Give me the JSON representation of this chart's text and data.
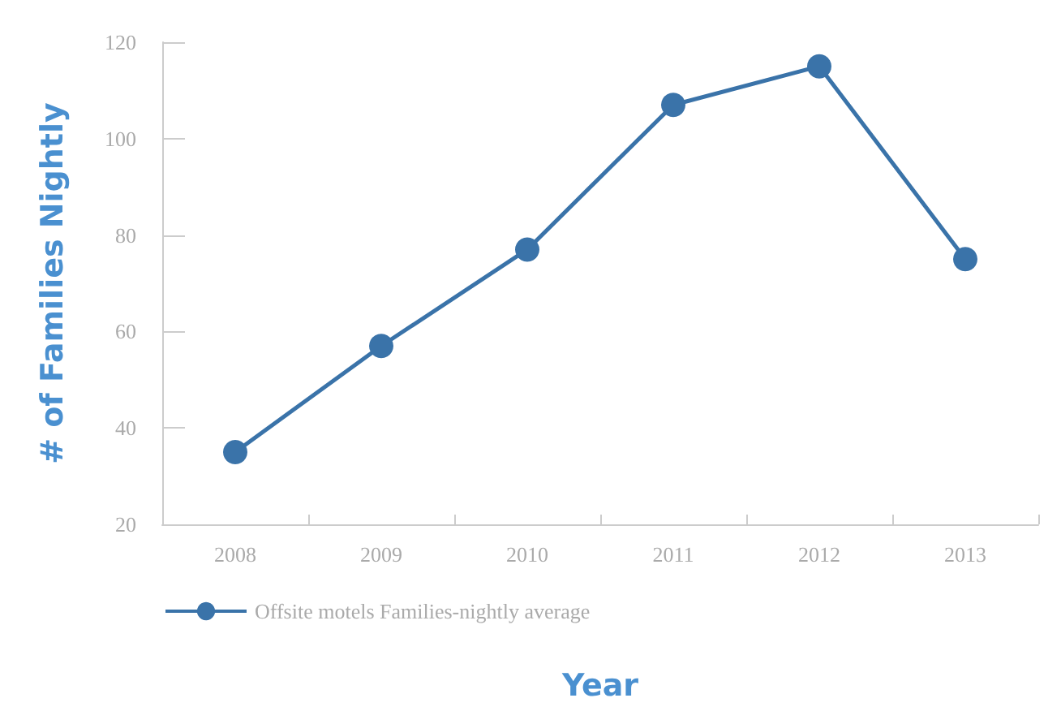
{
  "chart_data": {
    "type": "line",
    "xlabel": "Year",
    "ylabel": "# of Families Nightly",
    "categories": [
      "2008",
      "2009",
      "2010",
      "2011",
      "2012",
      "2013"
    ],
    "series": [
      {
        "name": "Offsite motels Families-nightly average",
        "color": "#3a73a9",
        "values": [
          35,
          57,
          77,
          107,
          115,
          75
        ]
      }
    ],
    "ylim": [
      20,
      120
    ],
    "yticks": [
      20,
      40,
      60,
      80,
      100,
      120
    ],
    "grid": false,
    "legend": "bottom left",
    "marker": "circle",
    "line_style": "solid"
  }
}
